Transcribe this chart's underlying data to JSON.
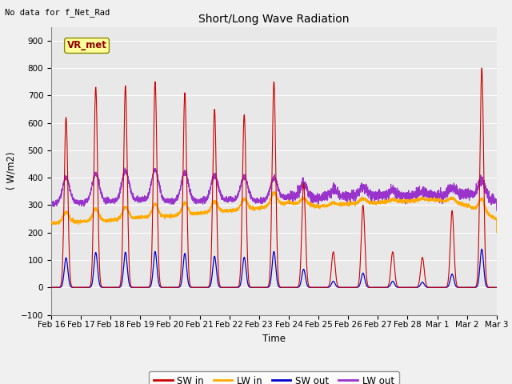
{
  "title": "Short/Long Wave Radiation",
  "ylabel": "( W/m2)",
  "xlabel": "Time",
  "subtitle": "No data for f_Net_Rad",
  "legend_label": "VR_met",
  "ylim": [
    -100,
    950
  ],
  "yticks": [
    -100,
    0,
    100,
    200,
    300,
    400,
    500,
    600,
    700,
    800,
    900
  ],
  "series_colors": {
    "SW_in": "#cc0000",
    "LW_in": "#ffaa00",
    "SW_out": "#0000cc",
    "LW_out": "#9933cc"
  },
  "fig_facecolor": "#f0f0f0",
  "plot_facecolor": "#e8e8e8",
  "peak_heights": [
    620,
    730,
    735,
    750,
    710,
    650,
    630,
    750,
    380,
    130,
    300,
    130,
    110,
    280,
    800
  ],
  "n_days": 15,
  "n_points_per_day": 288
}
